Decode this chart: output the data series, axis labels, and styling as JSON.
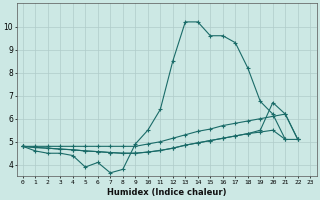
{
  "xlabel": "Humidex (Indice chaleur)",
  "xlim": [
    -0.5,
    23.5
  ],
  "ylim": [
    3.5,
    11.0
  ],
  "yticks": [
    4,
    5,
    6,
    7,
    8,
    9,
    10
  ],
  "xticks": [
    0,
    1,
    2,
    3,
    4,
    5,
    6,
    7,
    8,
    9,
    10,
    11,
    12,
    13,
    14,
    15,
    16,
    17,
    18,
    19,
    20,
    21,
    22,
    23
  ],
  "bg_color": "#cce8e4",
  "line_color": "#1a6b68",
  "grid_color": "#b0ccca",
  "series": [
    [
      4.8,
      4.6,
      4.5,
      4.5,
      4.4,
      3.9,
      4.1,
      3.65,
      3.8,
      4.9,
      5.5,
      6.4,
      8.5,
      10.2,
      10.2,
      9.6,
      9.6,
      9.3,
      8.2,
      6.75,
      6.2,
      5.1,
      5.1,
      null
    ],
    [
      4.8,
      4.8,
      4.8,
      4.8,
      4.8,
      4.8,
      4.8,
      4.8,
      4.8,
      4.8,
      4.9,
      5.0,
      5.15,
      5.3,
      5.45,
      5.55,
      5.7,
      5.8,
      5.9,
      6.0,
      6.1,
      6.2,
      5.1,
      null
    ],
    [
      4.8,
      4.75,
      4.72,
      4.68,
      4.65,
      4.6,
      4.57,
      4.53,
      4.5,
      4.5,
      4.55,
      4.62,
      4.72,
      4.85,
      4.95,
      5.05,
      5.15,
      5.25,
      5.35,
      5.42,
      5.5,
      5.1,
      null,
      null
    ],
    [
      4.8,
      4.75,
      4.72,
      4.68,
      4.65,
      4.6,
      4.57,
      4.53,
      4.5,
      4.5,
      4.55,
      4.62,
      4.72,
      4.85,
      4.95,
      5.05,
      5.15,
      5.25,
      5.35,
      5.5,
      6.7,
      6.2,
      5.1,
      null
    ]
  ]
}
